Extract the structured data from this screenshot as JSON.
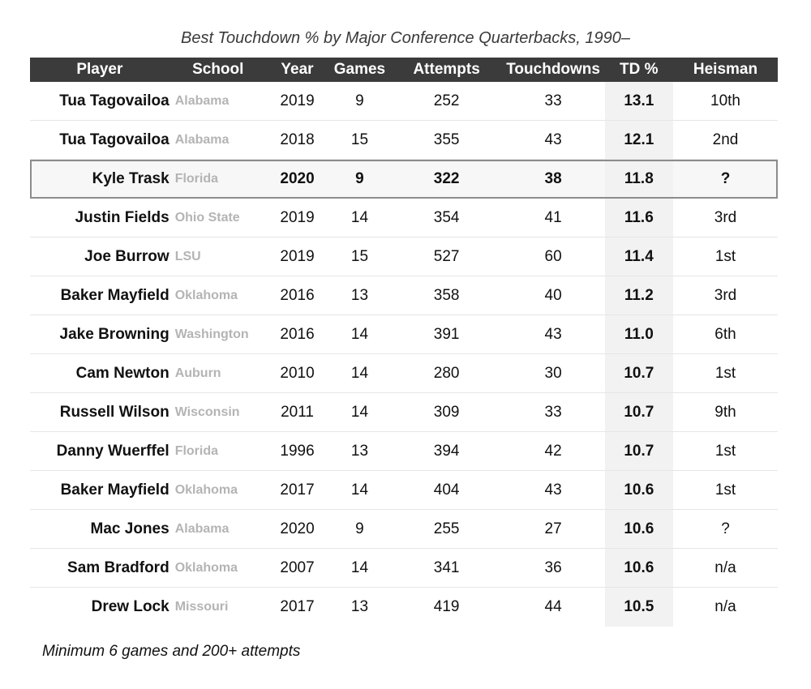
{
  "title": "Best Touchdown % by Major Conference Quarterbacks, 1990–",
  "footnote": "Minimum 6 games and 200+ attempts",
  "columns": [
    "Player",
    "School",
    "Year",
    "Games",
    "Attempts",
    "Touchdowns",
    "TD %",
    "Heisman"
  ],
  "highlight_row": 2,
  "chart_data": {
    "type": "table",
    "title": "Best Touchdown % by Major Conference Quarterbacks, 1990–",
    "columns": [
      "Player",
      "School",
      "Year",
      "Games",
      "Attempts",
      "Touchdowns",
      "TD %",
      "Heisman"
    ],
    "rows": [
      [
        "Tua Tagovailoa",
        "Alabama",
        "2019",
        "9",
        "252",
        "33",
        "13.1",
        "10th"
      ],
      [
        "Tua Tagovailoa",
        "Alabama",
        "2018",
        "15",
        "355",
        "43",
        "12.1",
        "2nd"
      ],
      [
        "Kyle Trask",
        "Florida",
        "2020",
        "9",
        "322",
        "38",
        "11.8",
        "?"
      ],
      [
        "Justin Fields",
        "Ohio State",
        "2019",
        "14",
        "354",
        "41",
        "11.6",
        "3rd"
      ],
      [
        "Joe Burrow",
        "LSU",
        "2019",
        "15",
        "527",
        "60",
        "11.4",
        "1st"
      ],
      [
        "Baker Mayfield",
        "Oklahoma",
        "2016",
        "13",
        "358",
        "40",
        "11.2",
        "3rd"
      ],
      [
        "Jake Browning",
        "Washington",
        "2016",
        "14",
        "391",
        "43",
        "11.0",
        "6th"
      ],
      [
        "Cam Newton",
        "Auburn",
        "2010",
        "14",
        "280",
        "30",
        "10.7",
        "1st"
      ],
      [
        "Russell Wilson",
        "Wisconsin",
        "2011",
        "14",
        "309",
        "33",
        "10.7",
        "9th"
      ],
      [
        "Danny Wuerffel",
        "Florida",
        "1996",
        "13",
        "394",
        "42",
        "10.7",
        "1st"
      ],
      [
        "Baker Mayfield",
        "Oklahoma",
        "2017",
        "14",
        "404",
        "43",
        "10.6",
        "1st"
      ],
      [
        "Mac Jones",
        "Alabama",
        "2020",
        "9",
        "255",
        "27",
        "10.6",
        "?"
      ],
      [
        "Sam Bradford",
        "Oklahoma",
        "2007",
        "14",
        "341",
        "36",
        "10.6",
        "n/a"
      ],
      [
        "Drew Lock",
        "Missouri",
        "2017",
        "13",
        "419",
        "44",
        "10.5",
        "n/a"
      ]
    ],
    "footnote": "Minimum 6 games and 200+ attempts"
  }
}
